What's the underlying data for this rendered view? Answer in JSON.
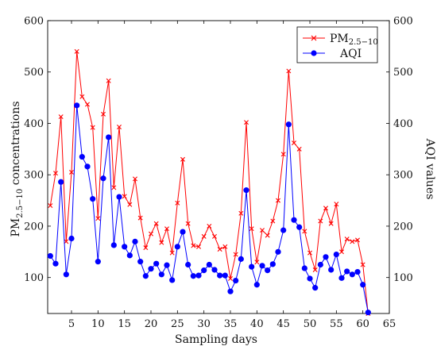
{
  "chart_data": {
    "type": "line",
    "xlabel": "Sampling days",
    "ylabel_left_main": "PM",
    "ylabel_left_sub": "2.5−10",
    "ylabel_left_rest": " concentrations",
    "ylabel_right": "AQI values",
    "xlim": [
      0.5,
      65
    ],
    "ylim": [
      30,
      600
    ],
    "xticks": [
      5,
      10,
      15,
      20,
      25,
      30,
      35,
      40,
      45,
      50,
      55,
      60,
      65
    ],
    "yticks": [
      100,
      200,
      300,
      400,
      500,
      600
    ],
    "legend_position": "top-right",
    "colors": {
      "pm": "#ff0000",
      "aqi": "#0000ff"
    },
    "series": [
      {
        "name_main": "PM",
        "name_sub": "2.5−10",
        "marker": "x",
        "x": [
          1,
          2,
          3,
          4,
          5,
          6,
          7,
          8,
          9,
          10,
          11,
          12,
          13,
          14,
          15,
          16,
          17,
          18,
          19,
          20,
          21,
          22,
          23,
          24,
          25,
          26,
          27,
          28,
          29,
          30,
          31,
          32,
          33,
          34,
          35,
          36,
          37,
          38,
          39,
          40,
          41,
          42,
          43,
          44,
          45,
          46,
          47,
          48,
          49,
          50,
          51,
          52,
          53,
          54,
          55,
          56,
          57,
          58,
          59,
          60,
          61
        ],
        "values": [
          240,
          303,
          413,
          170,
          305,
          540,
          452,
          437,
          392,
          215,
          418,
          483,
          275,
          393,
          258,
          242,
          292,
          216,
          158,
          185,
          205,
          168,
          195,
          148,
          245,
          330,
          205,
          162,
          160,
          180,
          200,
          180,
          155,
          160,
          98,
          145,
          225,
          402,
          195,
          130,
          192,
          182,
          210,
          250,
          340,
          502,
          362,
          350,
          190,
          148,
          115,
          210,
          235,
          205,
          243,
          150,
          175,
          170,
          173,
          125,
          30
        ]
      },
      {
        "name": "AQI",
        "marker": "o",
        "x": [
          1,
          2,
          3,
          4,
          5,
          6,
          7,
          8,
          9,
          10,
          11,
          12,
          13,
          14,
          15,
          16,
          17,
          18,
          19,
          20,
          21,
          22,
          23,
          24,
          25,
          26,
          27,
          28,
          29,
          30,
          31,
          32,
          33,
          34,
          35,
          36,
          37,
          38,
          39,
          40,
          41,
          42,
          43,
          44,
          45,
          46,
          47,
          48,
          49,
          50,
          51,
          52,
          53,
          54,
          55,
          56,
          57,
          58,
          59,
          60,
          61
        ],
        "values": [
          142,
          127,
          286,
          106,
          176,
          435,
          335,
          316,
          253,
          131,
          293,
          373,
          163,
          257,
          160,
          143,
          170,
          131,
          103,
          117,
          127,
          106,
          124,
          95,
          160,
          189,
          125,
          103,
          104,
          114,
          125,
          115,
          104,
          104,
          73,
          94,
          136,
          270,
          121,
          86,
          123,
          114,
          126,
          150,
          192,
          398,
          212,
          198,
          118,
          98,
          80,
          125,
          140,
          115,
          145,
          99,
          112,
          106,
          111,
          86,
          32
        ]
      }
    ]
  }
}
